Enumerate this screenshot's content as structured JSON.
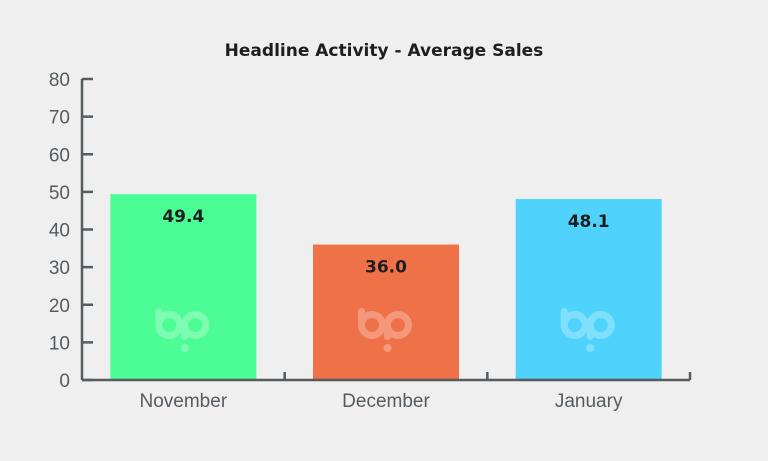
{
  "chart_data": {
    "type": "bar",
    "title": "Headline Activity - Average Sales",
    "xlabel": "",
    "ylabel": "",
    "categories": [
      "November",
      "December",
      "January"
    ],
    "values": [
      49.4,
      36.0,
      48.1
    ],
    "data_labels": [
      "49.4",
      "36.0",
      "48.1"
    ],
    "colors": [
      "#4cfd95",
      "#ef7148",
      "#4fd3fd"
    ],
    "ylim": [
      0,
      80
    ],
    "yticks": [
      0,
      10,
      20,
      30,
      40,
      50,
      60,
      70,
      80
    ],
    "grid": false,
    "legend": "none",
    "watermark": "bp-logo"
  }
}
